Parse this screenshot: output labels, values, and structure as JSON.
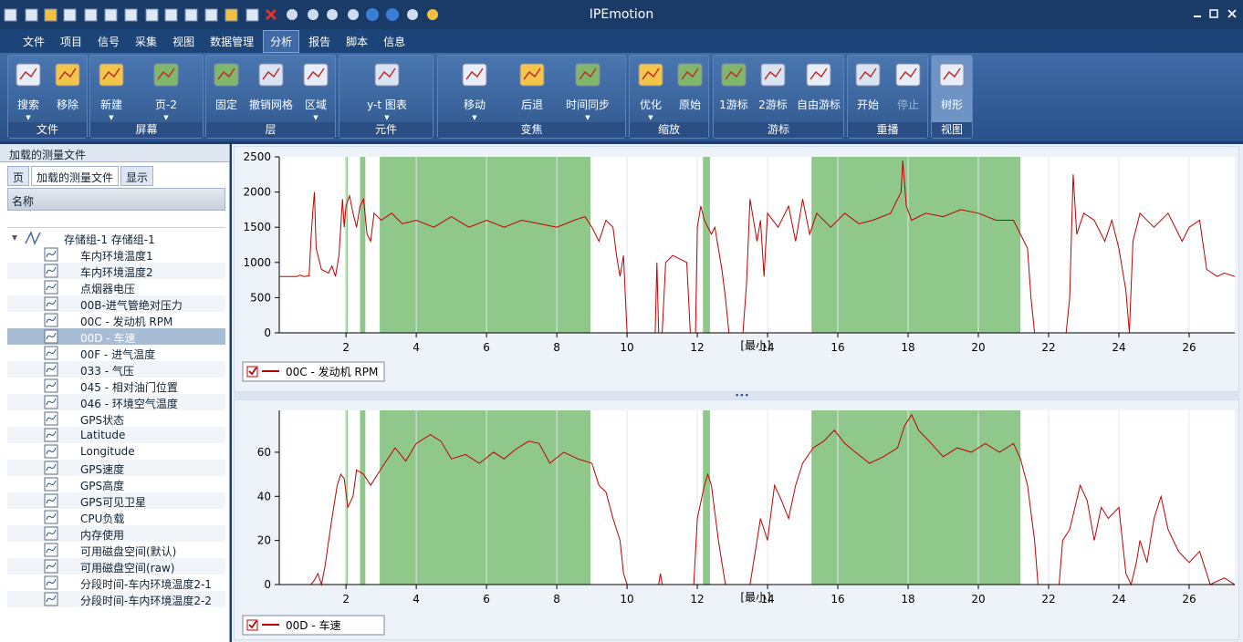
{
  "window": {
    "title": "IPEmotion"
  },
  "menu": {
    "items": [
      "文件",
      "项目",
      "信号",
      "采集",
      "视图",
      "数据管理",
      "分析",
      "报告",
      "脚本",
      "信息"
    ],
    "active": 6
  },
  "ribbon": {
    "groups": [
      {
        "label": "文件",
        "buttons": [
          "搜索",
          "移除"
        ]
      },
      {
        "label": "屏幕",
        "buttons": [
          "新建",
          "页-2"
        ]
      },
      {
        "label": "层",
        "buttons": [
          "固定",
          "撤销网格",
          "区域"
        ]
      },
      {
        "label": "元件",
        "buttons": [
          "y-t 图表"
        ]
      },
      {
        "label": "变焦",
        "buttons": [
          "移动",
          "后退",
          "时间同步"
        ]
      },
      {
        "label": "缩放",
        "buttons": [
          "优化",
          "原始"
        ]
      },
      {
        "label": "游标",
        "buttons": [
          "1游标",
          "2游标",
          "自由游标"
        ]
      },
      {
        "label": "重播",
        "buttons": [
          "开始",
          "停止"
        ]
      },
      {
        "label": "视图",
        "buttons": [
          "树形"
        ]
      }
    ]
  },
  "panel": {
    "title": "加载的测量文件",
    "tabs": [
      "页",
      "加载的测量文件",
      "显示"
    ],
    "active_tab": 1,
    "column": "名称",
    "group": "存储组-1 存储组-1",
    "items": [
      "车内环境温度1",
      "车内环境温度2",
      "点烟器电压",
      "00B-进气管绝对压力",
      "00C - 发动机 RPM",
      "00D - 车速",
      "00F - 进气温度",
      "033 - 气压",
      "045 - 相对油门位置",
      "046 - 环境空气温度",
      "GPS状态",
      "Latitude",
      "Longitude",
      "GPS速度",
      "GPS高度",
      "GPS可见卫星",
      "CPU负载",
      "内存使用",
      "可用磁盘空间(默认)",
      "可用磁盘空间(raw)",
      "分段时间-车内环境温度2-1",
      "分段时间-车内环境温度2-2"
    ],
    "selected": 5
  },
  "chart_data": [
    {
      "type": "line",
      "xlabel": "[最小]",
      "xlim": [
        0.1,
        27.3
      ],
      "xticks": [
        2,
        4,
        6,
        8,
        10,
        12,
        14,
        16,
        18,
        20,
        22,
        24,
        26
      ],
      "ylim": [
        0,
        2500
      ],
      "yticks": [
        0,
        500,
        1000,
        1500,
        2000,
        2500
      ],
      "grid": true,
      "highlight_color": "#90c78b",
      "highlight_ranges": [
        [
          1.98,
          2.05
        ],
        [
          2.4,
          2.55
        ],
        [
          2.96,
          8.96
        ],
        [
          12.16,
          12.36
        ],
        [
          15.25,
          21.2
        ]
      ],
      "x": [
        0.1,
        0.6,
        0.7,
        0.8,
        0.95,
        1.0,
        1.05,
        1.1,
        1.15,
        1.3,
        1.5,
        1.6,
        1.7,
        1.8,
        1.9,
        1.95,
        2.0,
        2.1,
        2.2,
        2.3,
        2.4,
        2.5,
        2.6,
        2.7,
        2.8,
        3.0,
        3.3,
        3.6,
        4.0,
        4.5,
        5.0,
        5.5,
        6.0,
        6.5,
        7.0,
        7.5,
        8.0,
        8.5,
        8.8,
        9.0,
        9.2,
        9.4,
        9.6,
        9.7,
        9.8,
        9.9,
        10.0,
        10.8,
        10.85,
        10.9,
        11.0,
        11.1,
        11.3,
        11.5,
        11.7,
        11.8,
        11.95,
        12.0,
        12.1,
        12.2,
        12.4,
        12.5,
        12.6,
        12.7,
        12.8,
        12.9,
        13.3,
        13.4,
        13.5,
        13.7,
        13.8,
        13.9,
        14.0,
        14.3,
        14.6,
        14.8,
        15.0,
        15.2,
        15.4,
        15.8,
        16.2,
        16.6,
        17.0,
        17.5,
        17.8,
        17.85,
        17.95,
        18.1,
        18.5,
        19.0,
        19.5,
        20.0,
        20.5,
        21.0,
        21.2,
        21.4,
        21.5,
        21.6,
        22.5,
        22.6,
        22.7,
        22.8,
        23.0,
        23.3,
        23.6,
        23.8,
        24.0,
        24.2,
        24.3,
        24.4,
        24.6,
        25.0,
        25.4,
        25.8,
        26.0,
        26.3,
        26.5,
        26.8,
        27.0,
        27.3
      ],
      "series": [
        {
          "name": "00C - 发动机 RPM",
          "color": "#c00000",
          "values": [
            800,
            800,
            820,
            800,
            810,
            1300,
            1700,
            2000,
            1200,
            900,
            850,
            950,
            800,
            1100,
            1900,
            1500,
            1800,
            1950,
            1700,
            1500,
            1800,
            1900,
            1400,
            1300,
            1700,
            1600,
            1700,
            1550,
            1600,
            1500,
            1650,
            1500,
            1600,
            1500,
            1600,
            1550,
            1500,
            1600,
            1650,
            1500,
            1300,
            1600,
            1500,
            1100,
            800,
            1100,
            0,
            0,
            1000,
            0,
            0,
            1000,
            1100,
            1050,
            1000,
            0,
            0,
            1500,
            1800,
            1600,
            1400,
            1500,
            1200,
            900,
            500,
            0,
            0,
            700,
            1900,
            1300,
            1600,
            800,
            1700,
            1500,
            1800,
            1300,
            1900,
            1400,
            1700,
            1500,
            1700,
            1550,
            1600,
            1700,
            2000,
            2450,
            1800,
            1600,
            1700,
            1650,
            1750,
            1700,
            1600,
            1600,
            1400,
            1200,
            500,
            0,
            0,
            500,
            2250,
            1400,
            1700,
            1600,
            1300,
            1600,
            1200,
            600,
            0,
            1300,
            1700,
            1500,
            1700,
            1300,
            1500,
            1600,
            900,
            800,
            850,
            800
          ]
        }
      ]
    },
    {
      "type": "line",
      "xlabel": "[最小]",
      "xlim": [
        0.1,
        27.3
      ],
      "xticks": [
        2,
        4,
        6,
        8,
        10,
        12,
        14,
        16,
        18,
        20,
        22,
        24,
        26
      ],
      "ylim": [
        0,
        79
      ],
      "yticks": [
        0,
        20,
        40,
        60
      ],
      "grid": true,
      "highlight_color": "#90c78b",
      "highlight_ranges": [
        [
          1.98,
          2.05
        ],
        [
          2.4,
          2.55
        ],
        [
          2.96,
          8.96
        ],
        [
          12.16,
          12.36
        ],
        [
          15.25,
          21.2
        ]
      ],
      "x": [
        0.1,
        1.0,
        1.1,
        1.2,
        1.3,
        1.4,
        1.6,
        1.75,
        1.85,
        1.95,
        2.05,
        2.2,
        2.3,
        2.5,
        2.7,
        2.9,
        3.1,
        3.4,
        3.7,
        4.0,
        4.4,
        4.7,
        5.0,
        5.4,
        5.8,
        6.2,
        6.5,
        6.8,
        7.2,
        7.5,
        7.8,
        8.2,
        8.6,
        9.0,
        9.2,
        9.4,
        9.6,
        9.8,
        9.9,
        10.0,
        10.9,
        10.95,
        11.0,
        11.9,
        12.0,
        12.2,
        12.3,
        12.4,
        12.6,
        12.7,
        12.8,
        13.5,
        13.6,
        13.8,
        14.0,
        14.2,
        14.4,
        14.6,
        14.8,
        15.0,
        15.3,
        15.6,
        15.9,
        16.2,
        16.5,
        16.9,
        17.3,
        17.7,
        17.9,
        18.1,
        18.3,
        18.6,
        19.0,
        19.4,
        19.8,
        20.2,
        20.6,
        21.0,
        21.2,
        21.4,
        21.6,
        21.7,
        22.3,
        22.4,
        22.6,
        22.9,
        23.1,
        23.3,
        23.5,
        23.7,
        24.0,
        24.2,
        24.35,
        24.5,
        24.6,
        24.8,
        25.0,
        25.2,
        25.4,
        25.7,
        26.0,
        26.3,
        26.6,
        27.0,
        27.3
      ],
      "series": [
        {
          "name": "00D - 车速",
          "color": "#c00000",
          "values": [
            0,
            0,
            2,
            5,
            0,
            8,
            30,
            45,
            50,
            48,
            35,
            40,
            52,
            50,
            45,
            50,
            55,
            62,
            56,
            64,
            68,
            65,
            57,
            59,
            55,
            60,
            57,
            61,
            65,
            64,
            55,
            60,
            57,
            55,
            45,
            42,
            30,
            20,
            5,
            0,
            0,
            5,
            0,
            0,
            30,
            45,
            50,
            45,
            20,
            10,
            0,
            0,
            10,
            30,
            20,
            45,
            38,
            30,
            45,
            55,
            62,
            65,
            70,
            64,
            60,
            55,
            58,
            62,
            72,
            77,
            70,
            65,
            58,
            62,
            60,
            64,
            60,
            64,
            57,
            45,
            20,
            0,
            0,
            20,
            25,
            45,
            38,
            20,
            35,
            30,
            35,
            5,
            0,
            10,
            20,
            10,
            30,
            40,
            25,
            15,
            10,
            15,
            0,
            3,
            0
          ]
        }
      ]
    }
  ]
}
